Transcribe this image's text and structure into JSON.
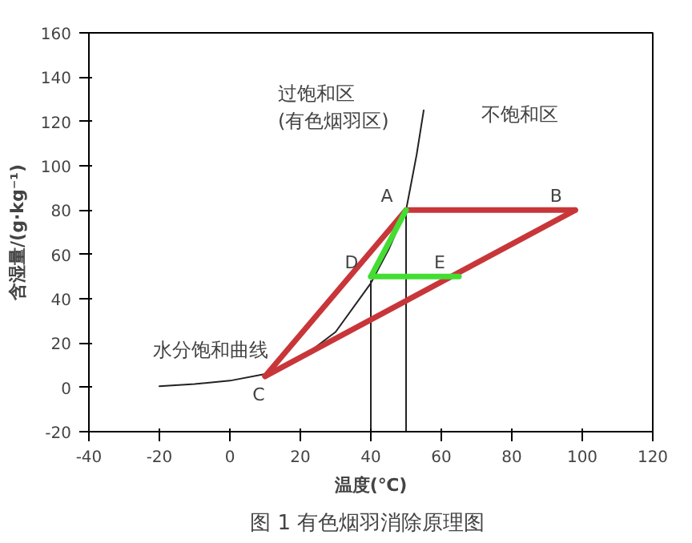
{
  "chart_data": {
    "type": "line",
    "xlabel": "温度(℃)",
    "ylabel": "含湿量/(g·kg⁻¹)",
    "xlim": [
      -40,
      120
    ],
    "xticks": [
      -40,
      -20,
      0,
      20,
      40,
      60,
      80,
      100,
      120
    ],
    "ylim": [
      -20,
      160
    ],
    "yticks": [
      -20,
      0,
      20,
      40,
      60,
      80,
      100,
      120,
      140,
      160
    ],
    "grid": false,
    "marker": "none",
    "line_style": "solid",
    "series": [
      {
        "color": "#222222",
        "x": [
          -20,
          -10,
          0,
          10,
          20,
          30,
          40,
          45,
          50,
          53,
          55
        ],
        "values": [
          0.5,
          1.5,
          3,
          6,
          13,
          25,
          47,
          62,
          80,
          105,
          125
        ]
      },
      {
        "color": "#222222",
        "x": [
          40,
          40
        ],
        "values": [
          -20,
          48
        ]
      },
      {
        "color": "#222222",
        "x": [
          50,
          50
        ],
        "values": [
          -20,
          80
        ]
      },
      {
        "color": "#c8363a",
        "x": [
          10,
          50
        ],
        "values": [
          5,
          80
        ]
      },
      {
        "color": "#c8363a",
        "x": [
          50,
          98
        ],
        "values": [
          80,
          80
        ]
      },
      {
        "color": "#c8363a",
        "x": [
          98,
          10
        ],
        "values": [
          80,
          5
        ]
      },
      {
        "color": "#44dd33",
        "x": [
          50,
          40
        ],
        "values": [
          80,
          50
        ]
      },
      {
        "color": "#44dd33",
        "x": [
          40,
          65
        ],
        "values": [
          50,
          50
        ]
      }
    ],
    "annotations": [
      {
        "text": "A",
        "x": 50,
        "y": 80
      },
      {
        "text": "B",
        "x": 98,
        "y": 80
      },
      {
        "text": "C",
        "x": 10,
        "y": 5
      },
      {
        "text": "D",
        "x": 40,
        "y": 50
      },
      {
        "text": "E",
        "x": 65,
        "y": 50
      },
      {
        "text": "水分饱和曲线",
        "x": 0,
        "y": 3
      },
      "过饱和区\n(有色烟羽区)",
      "不饱和区",
      "图 1  有色烟羽消除原理图"
    ]
  }
}
